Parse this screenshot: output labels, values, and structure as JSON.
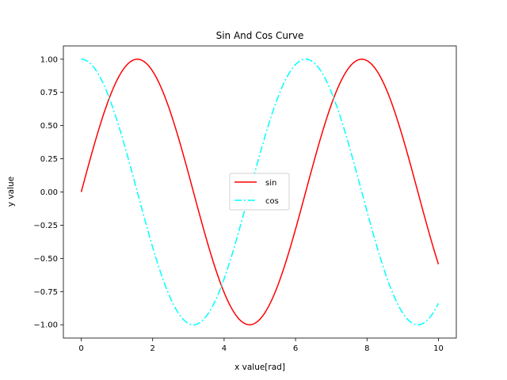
{
  "chart_data": {
    "type": "line",
    "title": "Sin And Cos Curve",
    "xlabel": "x value[rad]",
    "ylabel": "y value",
    "xlim": [
      -0.5,
      10.5
    ],
    "ylim": [
      -1.1,
      1.1
    ],
    "x_range": [
      0,
      10
    ],
    "grid": false,
    "legend_position": "center",
    "xticks": [
      {
        "value": 0,
        "label": "0"
      },
      {
        "value": 2,
        "label": "2"
      },
      {
        "value": 4,
        "label": "4"
      },
      {
        "value": 6,
        "label": "6"
      },
      {
        "value": 8,
        "label": "8"
      },
      {
        "value": 10,
        "label": "10"
      }
    ],
    "yticks": [
      {
        "value": 1.0,
        "label": "1.00"
      },
      {
        "value": 0.75,
        "label": "0.75"
      },
      {
        "value": 0.5,
        "label": "0.50"
      },
      {
        "value": 0.25,
        "label": "0.25"
      },
      {
        "value": 0.0,
        "label": "0.00"
      },
      {
        "value": -0.25,
        "label": "−0.25"
      },
      {
        "value": -0.5,
        "label": "−0.50"
      },
      {
        "value": -0.75,
        "label": "−0.75"
      },
      {
        "value": -1.0,
        "label": "−1.00"
      }
    ],
    "series": [
      {
        "name": "sin",
        "function": "sin",
        "color": "#ff0000",
        "linestyle": "solid"
      },
      {
        "name": "cos",
        "function": "cos",
        "color": "#00ffff",
        "linestyle": "dashdot"
      }
    ]
  }
}
